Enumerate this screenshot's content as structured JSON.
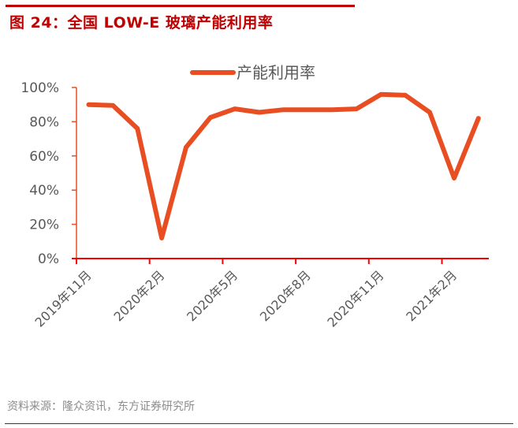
{
  "figure": {
    "title": "图 24：全国 LOW-E 玻璃产能利用率",
    "source": "资料来源：隆众资讯，东方证券研究所"
  },
  "colors": {
    "title": "#c00000",
    "line": "#e84e22",
    "x_axis": "#ff0000",
    "y_axis": "#e84e22",
    "tick_label": "#595959"
  },
  "chart_data": {
    "type": "line",
    "title": "图 24：全国 LOW-E 玻璃产能利用率",
    "xlabel": "",
    "ylabel": "",
    "ylim": [
      0,
      100
    ],
    "y_ticks": [
      "0%",
      "20%",
      "40%",
      "60%",
      "80%",
      "100%"
    ],
    "x_tick_labels": [
      "2019年11月",
      "2020年2月",
      "2020年5月",
      "2020年8月",
      "2020年11月",
      "2021年2月"
    ],
    "legend": {
      "position": "top",
      "entries": [
        "产能利用率"
      ]
    },
    "grid": false,
    "categories": [
      "2019年11月",
      "2019年12月",
      "2020年1月",
      "2020年2月",
      "2020年3月",
      "2020年4月",
      "2020年5月",
      "2020年6月",
      "2020年7月",
      "2020年8月",
      "2020年9月",
      "2020年10月",
      "2020年11月",
      "2020年12月",
      "2021年1月",
      "2021年2月",
      "2021年3月"
    ],
    "series": [
      {
        "name": "产能利用率",
        "unit": "%",
        "values": [
          90,
          89.5,
          76,
          12,
          65,
          82.5,
          87.5,
          85.5,
          87,
          87,
          87,
          87.5,
          96,
          95.5,
          85.5,
          47,
          82
        ]
      }
    ]
  }
}
